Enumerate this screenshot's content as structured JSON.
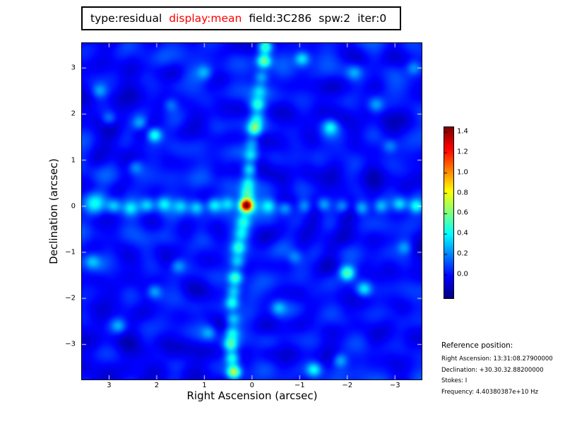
{
  "title": {
    "type": "type:residual",
    "display": "display:mean",
    "field": "field:3C286",
    "spw": "spw:2",
    "iter": "iter:0",
    "accent_color": "#ff0000",
    "text_color": "#000000"
  },
  "axes": {
    "xlabel": "Right Ascension (arcsec)",
    "ylabel": "Declination (arcsec)",
    "x_tick_labels": [
      "3",
      "2",
      "1",
      "0",
      "−1",
      "−2",
      "−3"
    ],
    "y_tick_labels": [
      "3",
      "2",
      "1",
      "0",
      "−1",
      "−2",
      "−3"
    ]
  },
  "colorbar": {
    "tick_labels": [
      "1.4",
      "1.2",
      "1.0",
      "0.8",
      "0.6",
      "0.4",
      "0.2",
      "0.0"
    ],
    "tick_values": [
      1.4,
      1.2,
      1.0,
      0.8,
      0.6,
      0.4,
      0.2,
      0.0
    ]
  },
  "reference": {
    "heading": "Reference position:",
    "lines": [
      "Right Ascension: 13:31:08.27900000",
      "Declination: +30.30.32.88200000",
      "Stokes: I",
      "Frequency: 4.40380387e+10 Hz"
    ]
  },
  "chart_data": {
    "type": "heatmap",
    "title": "type:residual display:mean field:3C286 spw:2 iter:0",
    "xlabel": "Right Ascension (arcsec)",
    "ylabel": "Declination (arcsec)",
    "x_ticks": [
      3,
      2,
      1,
      0,
      -1,
      -2,
      -3
    ],
    "y_ticks": [
      3,
      2,
      1,
      0,
      -1,
      -2,
      -3
    ],
    "x_range": [
      3.57,
      -3.56
    ],
    "y_range": [
      -3.76,
      3.54
    ],
    "colormap": "jet",
    "color_range": [
      -0.23,
      1.45
    ],
    "colorbar_ticks": [
      0.0,
      0.2,
      0.4,
      0.6,
      0.8,
      1.0,
      1.2,
      1.4
    ],
    "peak": {
      "ra": 0.12,
      "dec": 0.02,
      "value": 1.45
    },
    "render": {
      "seed": 1337,
      "ripples": [
        [
          0.03,
          7.3,
          3.404,
          0.7
        ],
        [
          0.028,
          -0.83,
          9.483,
          1.9
        ],
        [
          0.026,
          -6.046,
          3.491,
          4.0
        ]
      ],
      "radial": {
        "amp": 0.035,
        "k": 10.134,
        "phase": 0.8,
        "falloff": 5.5,
        "cx": 0.1,
        "cy": 0.0
      },
      "noise": [
        [
          0.055,
          1.6
        ],
        [
          0.038,
          3.1
        ]
      ],
      "default_sigma": 0.105,
      "blobs": [
        [
          -0.28,
          3.45,
          0.55
        ],
        [
          -0.25,
          3.15,
          0.6
        ],
        [
          -0.2,
          2.8,
          0.3
        ],
        [
          -0.16,
          2.5,
          0.25
        ],
        [
          -0.12,
          2.2,
          0.42
        ],
        [
          -0.1,
          1.9,
          0.3
        ],
        [
          -0.05,
          1.68,
          0.55
        ],
        [
          0.0,
          1.35,
          0.3
        ],
        [
          0.02,
          1.1,
          0.35
        ],
        [
          0.05,
          0.8,
          0.45
        ],
        [
          0.08,
          0.5,
          0.35
        ],
        [
          0.1,
          0.28,
          0.4
        ],
        [
          0.18,
          -0.35,
          0.35
        ],
        [
          0.22,
          -0.6,
          0.3
        ],
        [
          0.28,
          -0.9,
          0.4
        ],
        [
          0.3,
          -1.2,
          0.3
        ],
        [
          0.35,
          -1.55,
          0.5
        ],
        [
          0.38,
          -1.85,
          0.35
        ],
        [
          0.42,
          -2.1,
          0.45
        ],
        [
          0.4,
          -2.45,
          0.3
        ],
        [
          0.42,
          -2.75,
          0.35
        ],
        [
          0.45,
          -3.0,
          0.5
        ],
        [
          0.42,
          -3.3,
          0.45
        ],
        [
          0.38,
          -3.6,
          0.75
        ],
        [
          3.3,
          0.05,
          0.45,
          0.16
        ],
        [
          2.9,
          0.0,
          0.3
        ],
        [
          2.55,
          -0.05,
          0.25
        ],
        [
          2.2,
          0.02,
          0.3
        ],
        [
          1.85,
          0.05,
          0.3
        ],
        [
          1.5,
          0.0,
          0.25
        ],
        [
          1.15,
          -0.03,
          0.3
        ],
        [
          0.8,
          0.02,
          0.35
        ],
        [
          0.5,
          0.05,
          0.3
        ],
        [
          -0.35,
          0.0,
          0.3
        ],
        [
          -0.7,
          -0.04,
          0.3
        ],
        [
          -1.1,
          0.0,
          0.25
        ],
        [
          -1.5,
          0.04,
          0.3
        ],
        [
          -1.9,
          0.0,
          0.3
        ],
        [
          -2.3,
          -0.04,
          0.3
        ],
        [
          -2.7,
          0.0,
          0.3
        ],
        [
          -3.1,
          0.04,
          0.35
        ],
        [
          -3.45,
          0.0,
          0.4
        ],
        [
          0.12,
          0.02,
          1.32,
          0.09
        ],
        [
          0.12,
          0.02,
          0.3,
          0.24
        ],
        [
          2.05,
          1.55,
          0.5,
          0.11
        ],
        [
          2.35,
          1.8,
          0.28,
          0.11
        ],
        [
          -1.05,
          3.2,
          0.4,
          0.11
        ],
        [
          -1.65,
          1.72,
          0.32,
          0.11
        ],
        [
          -2.0,
          -1.45,
          0.55,
          0.11
        ],
        [
          -2.35,
          -1.8,
          0.38,
          0.11
        ],
        [
          2.05,
          -1.85,
          0.3,
          0.11
        ],
        [
          1.55,
          -1.3,
          0.25,
          0.11
        ],
        [
          3.2,
          2.5,
          0.24,
          0.11
        ],
        [
          -3.2,
          -0.9,
          0.24,
          0.11
        ],
        [
          -2.6,
          2.2,
          0.22,
          0.11
        ],
        [
          2.8,
          -2.6,
          0.24,
          0.11
        ],
        [
          -1.3,
          -3.55,
          0.4,
          0.11
        ],
        [
          -1.85,
          -3.35,
          0.3,
          0.11
        ],
        [
          1.0,
          2.9,
          0.24,
          0.11
        ],
        [
          -0.55,
          -2.2,
          0.24,
          0.11
        ],
        [
          2.45,
          0.85,
          0.22,
          0.11
        ],
        [
          -2.9,
          1.3,
          0.22,
          0.11
        ],
        [
          0.9,
          -2.75,
          0.24,
          0.11
        ],
        [
          -3.4,
          3.0,
          0.24,
          0.11
        ],
        [
          3.35,
          -1.2,
          0.24,
          0.11
        ],
        [
          -2.15,
          2.9,
          0.22,
          0.11
        ],
        [
          1.7,
          2.2,
          0.22,
          0.11
        ],
        [
          -0.9,
          -1.1,
          0.22,
          0.11
        ],
        [
          3.0,
          1.9,
          0.24,
          0.11
        ]
      ]
    }
  }
}
